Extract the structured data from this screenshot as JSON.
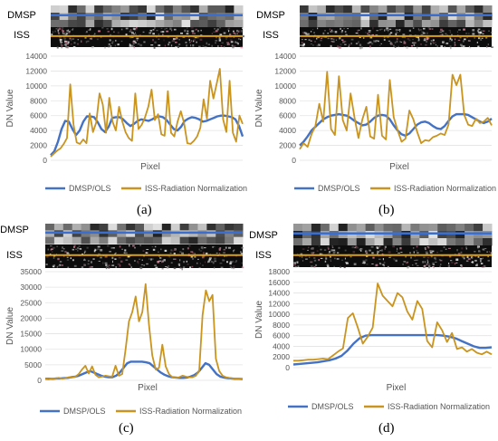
{
  "colors": {
    "dmsp": "#4472C4",
    "iss": "#C9941F",
    "dmsp_line_on_strip": "#3A6FD0",
    "iss_line_on_strip": "#E0A010"
  },
  "chart_data": [
    {
      "caption": "(a)",
      "type": "line",
      "strip_labels": {
        "dmsp": "DMSP",
        "iss": "ISS"
      },
      "ylabel": "DN Value",
      "xlabel": "Pixel",
      "ylim": [
        0,
        14000
      ],
      "yticks": [
        "0",
        "2000",
        "4000",
        "6000",
        "8000",
        "10000",
        "12000",
        "14000"
      ],
      "series": [
        {
          "name": "DMSP/OLS",
          "values": [
            700,
            1200,
            2500,
            4200,
            5300,
            5200,
            4200,
            3400,
            4000,
            5200,
            5900,
            5900,
            5800,
            5100,
            4200,
            3800,
            4500,
            5700,
            5800,
            5800,
            5500,
            5000,
            4600,
            4900,
            5300,
            5500,
            5400,
            5300,
            5500,
            5800,
            5900,
            5800,
            5400,
            4800,
            4200,
            4000,
            4500,
            5300,
            5600,
            5800,
            5700,
            5500,
            5200,
            5300,
            5500,
            5700,
            5900,
            6000,
            6000,
            5900,
            5800,
            5500,
            4600,
            3200
          ]
        },
        {
          "name": "ISS-Radiation Normalization",
          "values": [
            500,
            900,
            1300,
            1600,
            2200,
            3000,
            10200,
            4800,
            2400,
            2200,
            2800,
            2300,
            6300,
            3800,
            5100,
            9000,
            7500,
            3700,
            8400,
            5200,
            4000,
            7200,
            5200,
            3800,
            3000,
            2600,
            9000,
            4200,
            4800,
            5800,
            7200,
            9500,
            5400,
            6200,
            3500,
            3300,
            9300,
            3700,
            3200,
            5200,
            6600,
            5000,
            2300,
            2200,
            2600,
            3200,
            4400,
            8200,
            5600,
            10700,
            8300,
            10300,
            12300,
            5500,
            3800,
            10700,
            3700,
            2500,
            6000,
            4900
          ]
        }
      ]
    },
    {
      "caption": "(b)",
      "type": "line",
      "strip_labels": {
        "dmsp": "DMSP",
        "iss": "ISS"
      },
      "ylabel": "DN Value",
      "xlabel": "Pixel",
      "ylim": [
        0,
        14000
      ],
      "yticks": [
        "0",
        "2000",
        "4000",
        "6000",
        "8000",
        "10000",
        "12000",
        "14000"
      ],
      "series": [
        {
          "name": "DMSP/OLS",
          "values": [
            2000,
            2500,
            3200,
            4000,
            4500,
            5000,
            5500,
            5800,
            6000,
            6100,
            6200,
            6100,
            6000,
            5700,
            5300,
            5000,
            4700,
            4800,
            5200,
            5700,
            6000,
            6100,
            6000,
            5500,
            4700,
            4000,
            3500,
            3300,
            3600,
            4200,
            4800,
            5100,
            5200,
            5000,
            4600,
            4300,
            4200,
            4600,
            5300,
            5900,
            6200,
            6200,
            6200,
            6100,
            5800,
            5500,
            5200,
            5000,
            5200,
            5600
          ]
        },
        {
          "name": "ISS-Radiation Normalization",
          "values": [
            1500,
            2300,
            1800,
            3500,
            4600,
            7600,
            5200,
            11900,
            4200,
            3400,
            11300,
            5400,
            4000,
            9000,
            5700,
            3000,
            5500,
            7200,
            3200,
            2900,
            8800,
            3300,
            2800,
            10800,
            5800,
            4000,
            2500,
            2900,
            6700,
            5500,
            3800,
            2300,
            2700,
            2600,
            3100,
            3300,
            3600,
            3400,
            4800,
            11500,
            10100,
            11500,
            6100,
            4800,
            4600,
            5600,
            5000,
            5200,
            5700,
            4700
          ]
        }
      ]
    },
    {
      "caption": "(c)",
      "type": "line",
      "strip_labels": {
        "dmsp": "DMSP",
        "iss": "ISS"
      },
      "ylabel": "DN Value",
      "xlabel": "Pixel",
      "ylim": [
        0,
        35000
      ],
      "yticks": [
        "0",
        "5000",
        "10000",
        "15000",
        "20000",
        "25000",
        "30000",
        "35000"
      ],
      "series": [
        {
          "name": "DMSP/OLS",
          "values": [
            500,
            500,
            500,
            600,
            600,
            700,
            800,
            1000,
            1200,
            1500,
            2000,
            2500,
            3000,
            2500,
            2000,
            1500,
            1200,
            1000,
            1000,
            1500,
            2500,
            4000,
            5500,
            6000,
            6000,
            6000,
            6000,
            5800,
            5500,
            4500,
            3500,
            2500,
            1800,
            1300,
            1000,
            900,
            800,
            800,
            900,
            1200,
            1700,
            2500,
            4000,
            5500,
            5000,
            3500,
            2000,
            1200,
            900,
            700,
            600,
            500,
            500,
            400
          ]
        },
        {
          "name": "ISS-Radiation Normalization",
          "values": [
            400,
            300,
            500,
            600,
            800,
            500,
            700,
            1000,
            900,
            1200,
            2000,
            3500,
            4700,
            2200,
            4500,
            1800,
            1000,
            1200,
            1500,
            1300,
            1200,
            4700,
            1500,
            2000,
            10000,
            19000,
            22000,
            27000,
            19000,
            22000,
            31000,
            18000,
            8000,
            3500,
            4000,
            11500,
            4500,
            2000,
            1000,
            800,
            1000,
            1500,
            1200,
            1000,
            1000,
            1500,
            3000,
            21000,
            29000,
            25500,
            27500,
            7000,
            3000,
            1500,
            1000,
            800,
            600,
            500,
            500,
            500
          ]
        }
      ]
    },
    {
      "caption": "(d)",
      "type": "line",
      "strip_labels": {
        "dmsp": "DMSP",
        "iss": "ISS"
      },
      "ylabel": "DN Value",
      "xlabel": "Pixel",
      "ylim": [
        0,
        18000
      ],
      "yticks": [
        "0",
        "2000",
        "4000",
        "6000",
        "8000",
        "10000",
        "12000",
        "14000",
        "16000",
        "18000"
      ],
      "series": [
        {
          "name": "DMSP/OLS",
          "values": [
            600,
            700,
            800,
            900,
            1000,
            1200,
            1400,
            1700,
            2200,
            3200,
            4500,
            5500,
            6000,
            6100,
            6100,
            6100,
            6100,
            6100,
            6100,
            6100,
            6100,
            6100,
            6100,
            6100,
            6100,
            6000,
            5800,
            5500,
            5000,
            4500,
            4000,
            3700,
            3700,
            3800
          ]
        },
        {
          "name": "ISS-Radiation Normalization",
          "values": [
            1300,
            1300,
            1400,
            1500,
            1500,
            1600,
            1700,
            1600,
            2300,
            3000,
            3600,
            9300,
            10200,
            7500,
            4500,
            5800,
            7500,
            15800,
            13500,
            12500,
            11500,
            14000,
            13200,
            10500,
            9000,
            12500,
            11000,
            5000,
            3800,
            8500,
            7000,
            4800,
            6500,
            3500,
            3800,
            3000,
            3500,
            2800,
            2500,
            3000,
            2500
          ]
        }
      ]
    }
  ]
}
